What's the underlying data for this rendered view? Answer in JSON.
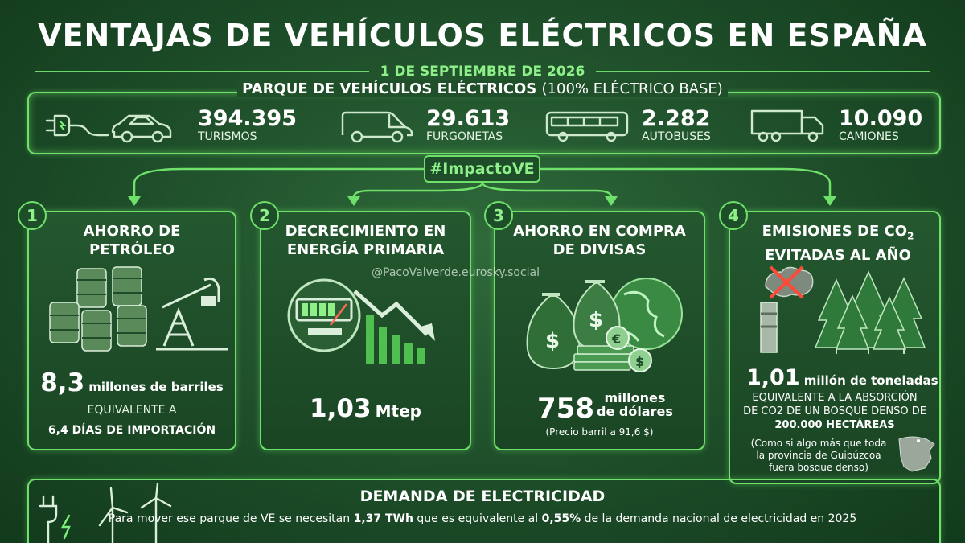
{
  "header": {
    "title": "VENTAJAS DE VEHÍCULOS ELÉCTRICOS EN ESPAÑA",
    "date": "1 DE SEPTIEMBRE DE 2026"
  },
  "fleet": {
    "title_bold": "PARQUE DE VEHÍCULOS ELÉCTRICOS",
    "title_light": "(100% ELÉCTRICO BASE)",
    "items": [
      {
        "value": "394.395",
        "label": "TURISMOS",
        "icon": "car-icon"
      },
      {
        "value": "29.613",
        "label": "FURGONETAS",
        "icon": "van-icon"
      },
      {
        "value": "2.282",
        "label": "AUTOBUSES",
        "icon": "bus-icon"
      },
      {
        "value": "10.090",
        "label": "CAMIONES",
        "icon": "truck-icon"
      }
    ]
  },
  "hashtag": "#ImpactoVE",
  "watermark": "@PacoValverde.eurosky.social",
  "cards": [
    {
      "number": "1",
      "title": "AHORRO DE PETRÓLEO",
      "value": "8,3",
      "unit": "millones de barriles",
      "note1": "EQUIVALENTE A",
      "note2": "6,4 DÍAS DE IMPORTACIÓN",
      "icon": "oil-barrels-icon"
    },
    {
      "number": "2",
      "title": "DECRECIMIENTO EN ENERGÍA PRIMARIA",
      "value": "1,03",
      "unit": "Mtep",
      "icon": "energy-decrease-icon"
    },
    {
      "number": "3",
      "title": "AHORRO EN COMPRA DE DIVISAS",
      "value": "758",
      "unit1": "millones",
      "unit2": "de dólares",
      "note": "(Precio barril a 91,6 $)",
      "icon": "money-bags-icon"
    },
    {
      "number": "4",
      "title_a": "EMISIONES DE CO",
      "title_sub": "2",
      "title_b": "EVITADAS AL AÑO",
      "co2_label": "CO2",
      "value": "1,01",
      "unit": "millón de toneladas",
      "note1": "EQUIVALENTE A LA ABSORCIÓN",
      "note2": "DE CO2 DE UN BOSQUE DENSO DE",
      "note3": "200.000 HECTÁREAS",
      "paren1": "(Como si algo más que toda",
      "paren2": "la provincia de Guipúzcoa",
      "paren3": "fuera bosque denso)",
      "icon": "forest-icon"
    }
  ],
  "bottom": {
    "title": "DEMANDA DE ELECTRICIDAD",
    "text_1": "Para mover ese parque de VE se necesitan",
    "value_1": "1,37 TWh",
    "text_2": "que es equivalente al",
    "value_2": "0,55%",
    "text_3": "de la demanda nacional de electricidad en 2025"
  },
  "colors": {
    "accent": "#6fe06a",
    "background": "#1d4d29"
  }
}
